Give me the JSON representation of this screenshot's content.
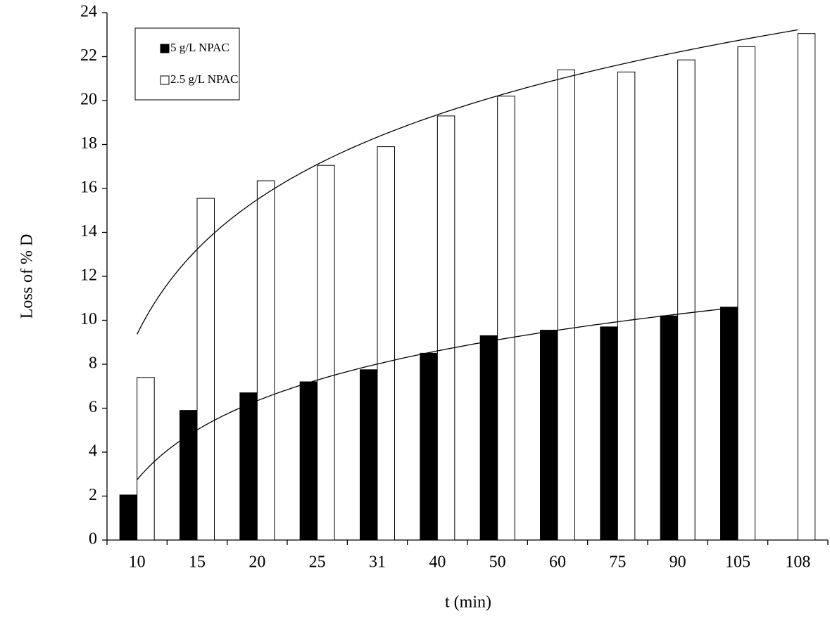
{
  "chart_data": {
    "type": "bar",
    "x_label": "t (min)",
    "y_label": "Loss of  % D",
    "categories": [
      "10",
      "15",
      "20",
      "25",
      "31",
      "40",
      "50",
      "60",
      "75",
      "90",
      "105",
      "108"
    ],
    "series": [
      {
        "name": "5 g/L NPAC",
        "color": "#000000",
        "values": [
          2.05,
          5.9,
          6.7,
          7.2,
          7.75,
          8.5,
          9.3,
          9.55,
          9.7,
          10.2,
          10.6,
          null
        ]
      },
      {
        "name": "2.5 g/L NPAC",
        "color": "#ffffff",
        "values": [
          7.4,
          15.55,
          16.35,
          17.05,
          17.9,
          19.3,
          20.2,
          21.4,
          21.3,
          21.85,
          22.45,
          23.05
        ]
      }
    ],
    "ylim": [
      0,
      24
    ],
    "yticks": [
      0,
      2,
      4,
      6,
      8,
      10,
      12,
      14,
      16,
      18,
      20,
      22,
      24
    ],
    "trendline": "logarithmic",
    "legend": "top-left"
  }
}
